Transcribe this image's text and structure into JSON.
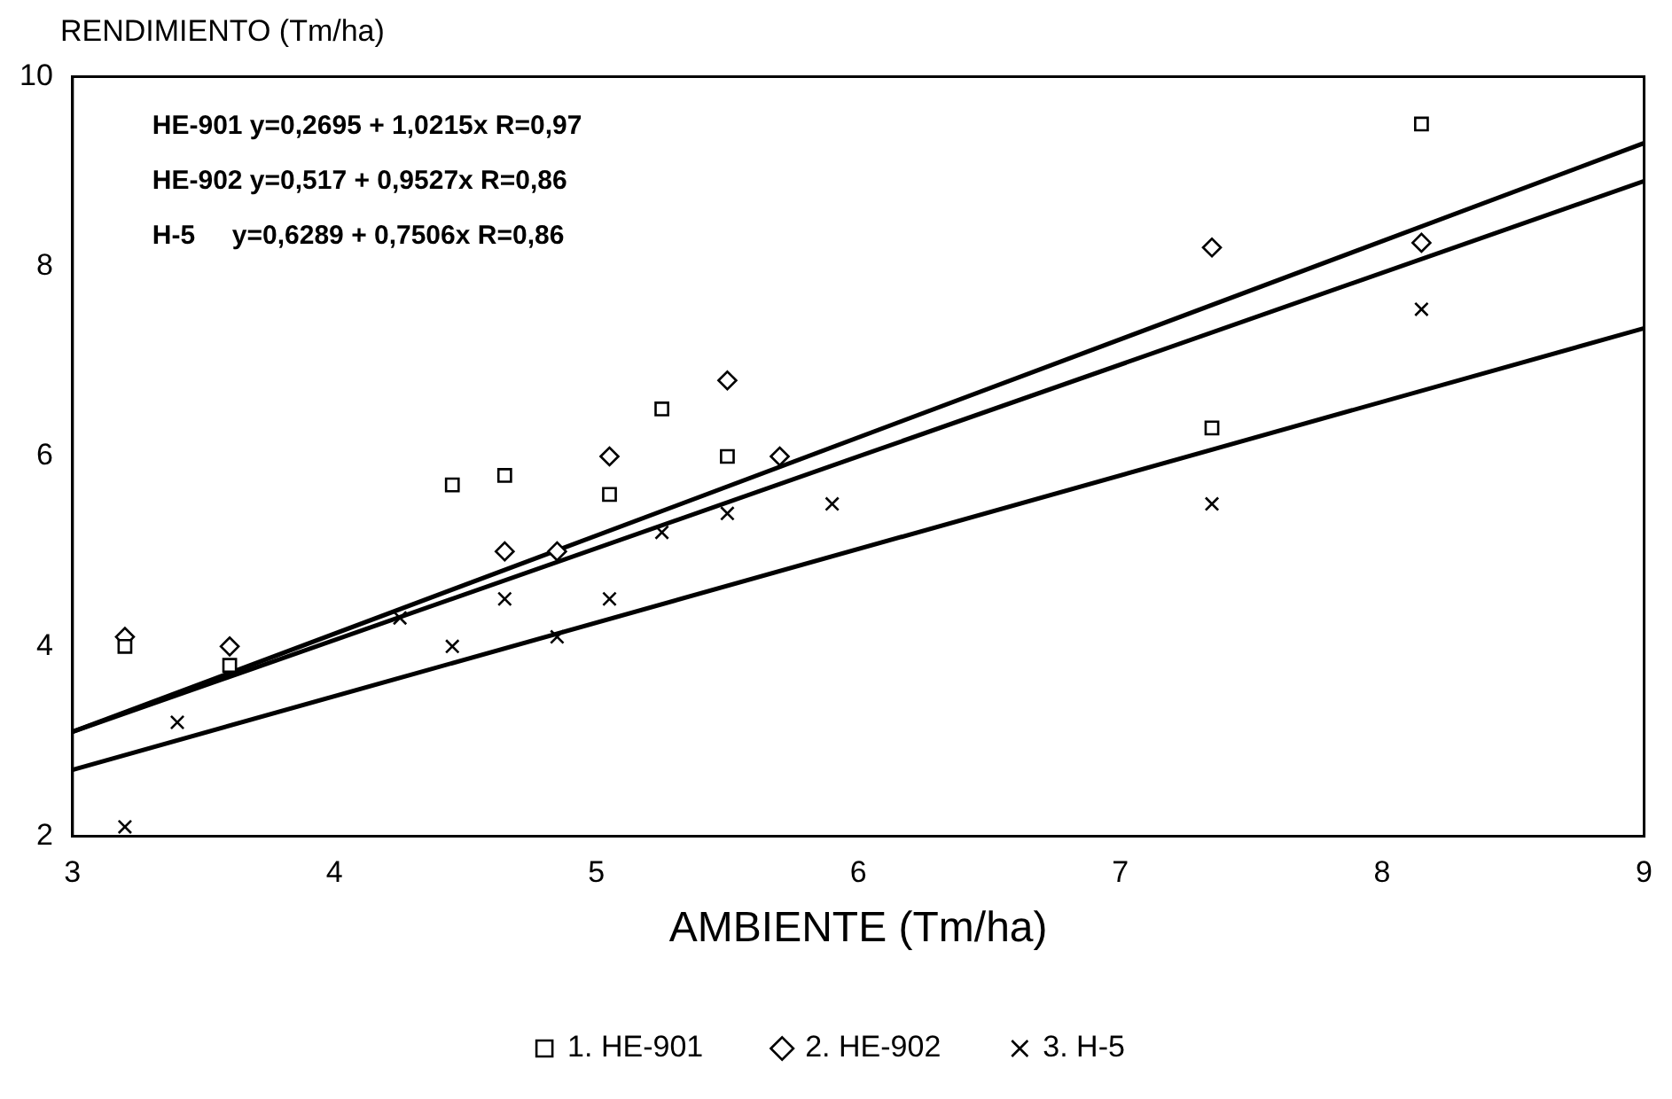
{
  "chart_data": {
    "type": "scatter",
    "xlabel": "AMBIENTE (Tm/ha)",
    "ylabel": "RENDIMIENTO (Tm/ha)",
    "xlim": [
      3,
      9
    ],
    "xticks": [
      3,
      4,
      5,
      6,
      7,
      8,
      9
    ],
    "ylim": [
      2,
      10
    ],
    "yticks": [
      2,
      4,
      6,
      8,
      10
    ],
    "grid": false,
    "legend": "bottom",
    "annotations": [
      "HE-901 y=0,2695 + 1,0215x R=0,97",
      "HE-902 y=0,517 + 0,9527x R=0,86",
      "H-5     y=0,6289 + 0,7506x R=0,86"
    ],
    "series": [
      {
        "name": "1. HE-901",
        "color": "#000000",
        "marker": "square",
        "x": [
          3.2,
          3.6,
          4.45,
          4.65,
          5.05,
          5.25,
          5.5,
          7.35,
          8.15
        ],
        "values": [
          4.0,
          3.8,
          5.7,
          5.8,
          5.6,
          6.5,
          6.0,
          6.3,
          9.5
        ]
      },
      {
        "name": "2. HE-902",
        "color": "#000000",
        "marker": "diamond",
        "x": [
          3.2,
          3.6,
          4.65,
          4.85,
          5.05,
          5.5,
          5.7,
          7.35,
          8.15
        ],
        "values": [
          4.1,
          4.0,
          5.0,
          5.0,
          6.0,
          6.8,
          6.0,
          8.2,
          8.25
        ]
      },
      {
        "name": "3. H-5",
        "color": "#000000",
        "marker": "cross",
        "x": [
          3.2,
          3.4,
          3.6,
          4.25,
          4.45,
          4.65,
          4.85,
          5.05,
          5.25,
          5.5,
          5.9,
          7.35,
          8.15
        ],
        "values": [
          2.1,
          3.2,
          null,
          4.3,
          4.0,
          4.5,
          4.1,
          4.5,
          5.2,
          5.4,
          5.5,
          5.5,
          7.55
        ]
      },
      {
        "type": "line",
        "color": "#000000",
        "marker": "none",
        "x": [
          3,
          9
        ],
        "values": [
          3.1,
          9.3
        ]
      },
      {
        "type": "line",
        "color": "#000000",
        "marker": "none",
        "x": [
          3,
          9
        ],
        "values": [
          3.1,
          8.9
        ]
      },
      {
        "type": "line",
        "color": "#000000",
        "marker": "none",
        "x": [
          3,
          9
        ],
        "values": [
          2.7,
          7.35
        ]
      }
    ]
  }
}
